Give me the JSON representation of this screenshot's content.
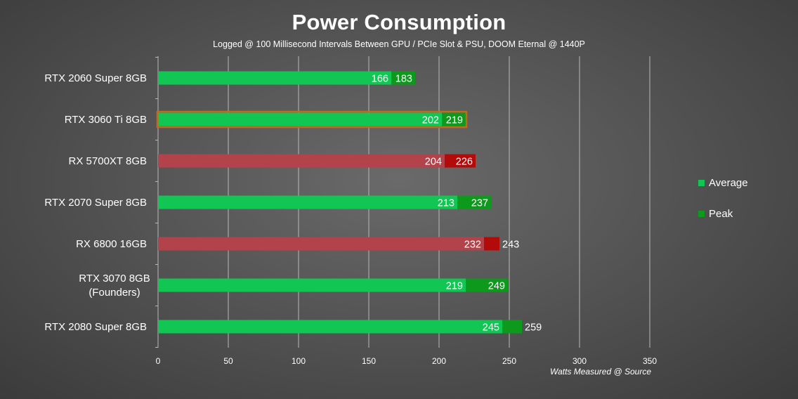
{
  "chart_data": {
    "type": "bar",
    "title": "Power Consumption",
    "subtitle": "Logged @ 100 Millisecond Intervals Between GPU / PCIe Slot & PSU, DOOM Eternal @ 1440P",
    "xlabel": "Watts Measured @ Source",
    "xlim": [
      0,
      350
    ],
    "xticks": [
      0,
      50,
      100,
      150,
      200,
      250,
      300,
      350
    ],
    "grid": true,
    "legend_placement": "right",
    "categories": [
      [
        "RTX 2060 Super 8GB"
      ],
      [
        "RTX 3060 Ti 8GB"
      ],
      [
        "RX 5700XT 8GB"
      ],
      [
        "RTX 2070 Super 8GB"
      ],
      [
        "RX 6800 16GB"
      ],
      [
        "RTX 3070 8GB",
        "(Founders)"
      ],
      [
        "RTX 2080 Super 8GB"
      ]
    ],
    "vendors": [
      "nvidia",
      "nvidia",
      "amd",
      "nvidia",
      "amd",
      "nvidia",
      "nvidia"
    ],
    "highlighted": [
      false,
      true,
      false,
      false,
      false,
      false,
      false
    ],
    "series": [
      {
        "name": "Average",
        "values": [
          166,
          202,
          204,
          213,
          232,
          219,
          245
        ]
      },
      {
        "name": "Peak",
        "values": [
          183,
          219,
          226,
          237,
          243,
          249,
          259
        ]
      }
    ],
    "colors": {
      "nvidia_average": "#12c653",
      "nvidia_peak": "#0d9a1c",
      "amd_average": "#b3434b",
      "amd_peak": "#b30a0a",
      "highlight_outline": "#c26a1c",
      "grid": "#b8b8b8"
    }
  },
  "legend": [
    {
      "label": "Average",
      "color": "#12c653"
    },
    {
      "label": "Peak",
      "color": "#0d9a1c"
    }
  ]
}
